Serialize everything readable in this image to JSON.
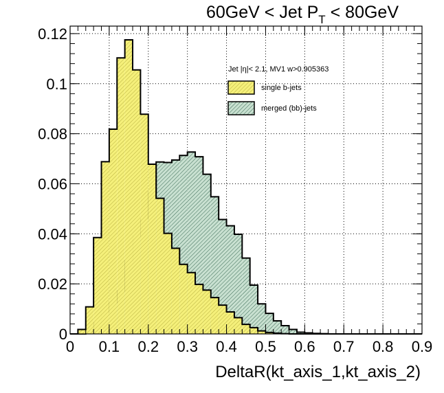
{
  "chart_data": {
    "type": "histogram",
    "title_main": "60GeV < Jet P",
    "title_sub": "T",
    "title_tail": " < 80GeV",
    "xlabel": "DeltaR(kt_axis_1,kt_axis_2)",
    "ylabel": "",
    "xlim": [
      0,
      0.9
    ],
    "ylim": [
      0,
      0.123
    ],
    "x_ticks": [
      "0",
      "0.1",
      "0.2",
      "0.3",
      "0.4",
      "0.5",
      "0.6",
      "0.7",
      "0.8",
      "0.9"
    ],
    "y_ticks": [
      "0",
      "0.02",
      "0.04",
      "0.06",
      "0.08",
      "0.1",
      "0.12"
    ],
    "grid": true,
    "grid_style": "dotted",
    "bin_width": 0.02,
    "legend": {
      "header": "Jet |η|< 2.1, MV1 w>0.905363",
      "placement": "top-right"
    },
    "series": [
      {
        "name": "merged (bb)-jets",
        "color": "#c8e0d0",
        "hatch": "#336650",
        "values": [
          0,
          0,
          0.0005,
          0.0045,
          0.0085,
          0.0125,
          0.0172,
          0.0292,
          0.0392,
          0.046,
          0.0565,
          0.0687,
          0.0685,
          0.0695,
          0.0713,
          0.0727,
          0.0708,
          0.0638,
          0.0548,
          0.0457,
          0.0432,
          0.0398,
          0.0303,
          0.0195,
          0.012,
          0.0082,
          0.0052,
          0.0033,
          0.0018,
          0.0007,
          0.0004,
          0.0002,
          0.0001,
          0,
          0,
          0,
          0,
          0,
          0,
          0,
          0,
          0,
          0,
          0,
          0
        ]
      },
      {
        "name": "single b-jets",
        "color": "#f5f07a",
        "hatch": "#a8a02a",
        "values": [
          0,
          0.0018,
          0.0108,
          0.0385,
          0.0688,
          0.0818,
          0.1103,
          0.1175,
          0.1055,
          0.0878,
          0.0678,
          0.0542,
          0.0402,
          0.0342,
          0.0278,
          0.0245,
          0.0198,
          0.0175,
          0.0145,
          0.0115,
          0.0088,
          0.0065,
          0.0038,
          0.0025,
          0.0012,
          0.0006,
          0.0003,
          0.0001,
          0,
          0,
          0,
          0,
          0,
          0,
          0,
          0,
          0,
          0,
          0,
          0,
          0,
          0,
          0,
          0,
          0
        ]
      }
    ]
  }
}
